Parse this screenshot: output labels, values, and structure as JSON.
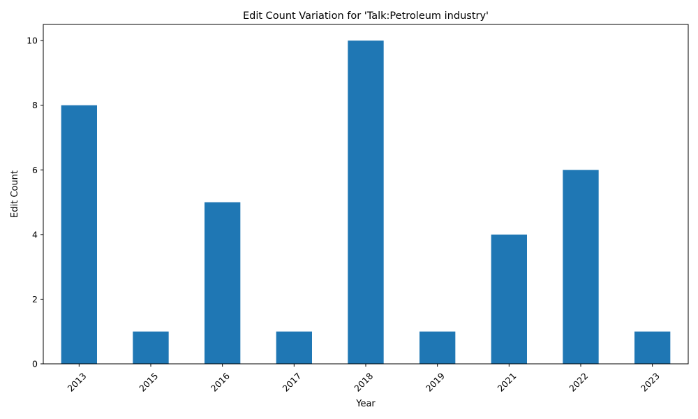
{
  "chart_data": {
    "type": "bar",
    "title": "Edit Count Variation for 'Talk:Petroleum industry'",
    "xlabel": "Year",
    "ylabel": "Edit Count",
    "categories": [
      "2013",
      "2015",
      "2016",
      "2017",
      "2018",
      "2019",
      "2021",
      "2022",
      "2023"
    ],
    "values": [
      8,
      1,
      5,
      1,
      10,
      1,
      4,
      6,
      1
    ],
    "ylim": [
      0,
      10.5
    ],
    "yticks": [
      0,
      2,
      4,
      6,
      8,
      10
    ],
    "grid": false,
    "bar_color": "#1f77b4"
  }
}
